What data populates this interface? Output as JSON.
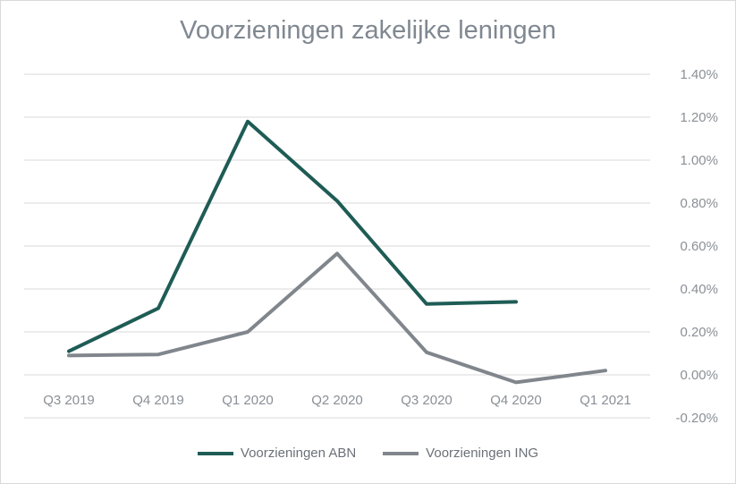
{
  "chart_data": {
    "type": "line",
    "title": "Voorzieningen zakelijke leningen",
    "xlabel": "",
    "ylabel": "",
    "categories": [
      "Q3 2019",
      "Q4 2019",
      "Q1 2020",
      "Q2 2020",
      "Q3 2020",
      "Q4 2020",
      "Q1 2021"
    ],
    "series": [
      {
        "name": "Voorzieningen ABN",
        "color": "#1e5c55",
        "values": [
          0.11,
          0.31,
          1.18,
          0.81,
          0.33,
          0.34,
          null
        ]
      },
      {
        "name": "Voorzieningen ING",
        "color": "#80868c",
        "values": [
          0.09,
          0.095,
          0.2,
          0.565,
          0.105,
          -0.035,
          0.02
        ]
      }
    ],
    "y_ticks": [
      "1.40%",
      "1.20%",
      "1.00%",
      "0.80%",
      "0.60%",
      "0.40%",
      "0.20%",
      "0.00%",
      "-0.20%"
    ],
    "ylim": [
      -0.2,
      1.4
    ],
    "y_axis_side": "right",
    "grid": true,
    "legend_position": "bottom"
  }
}
